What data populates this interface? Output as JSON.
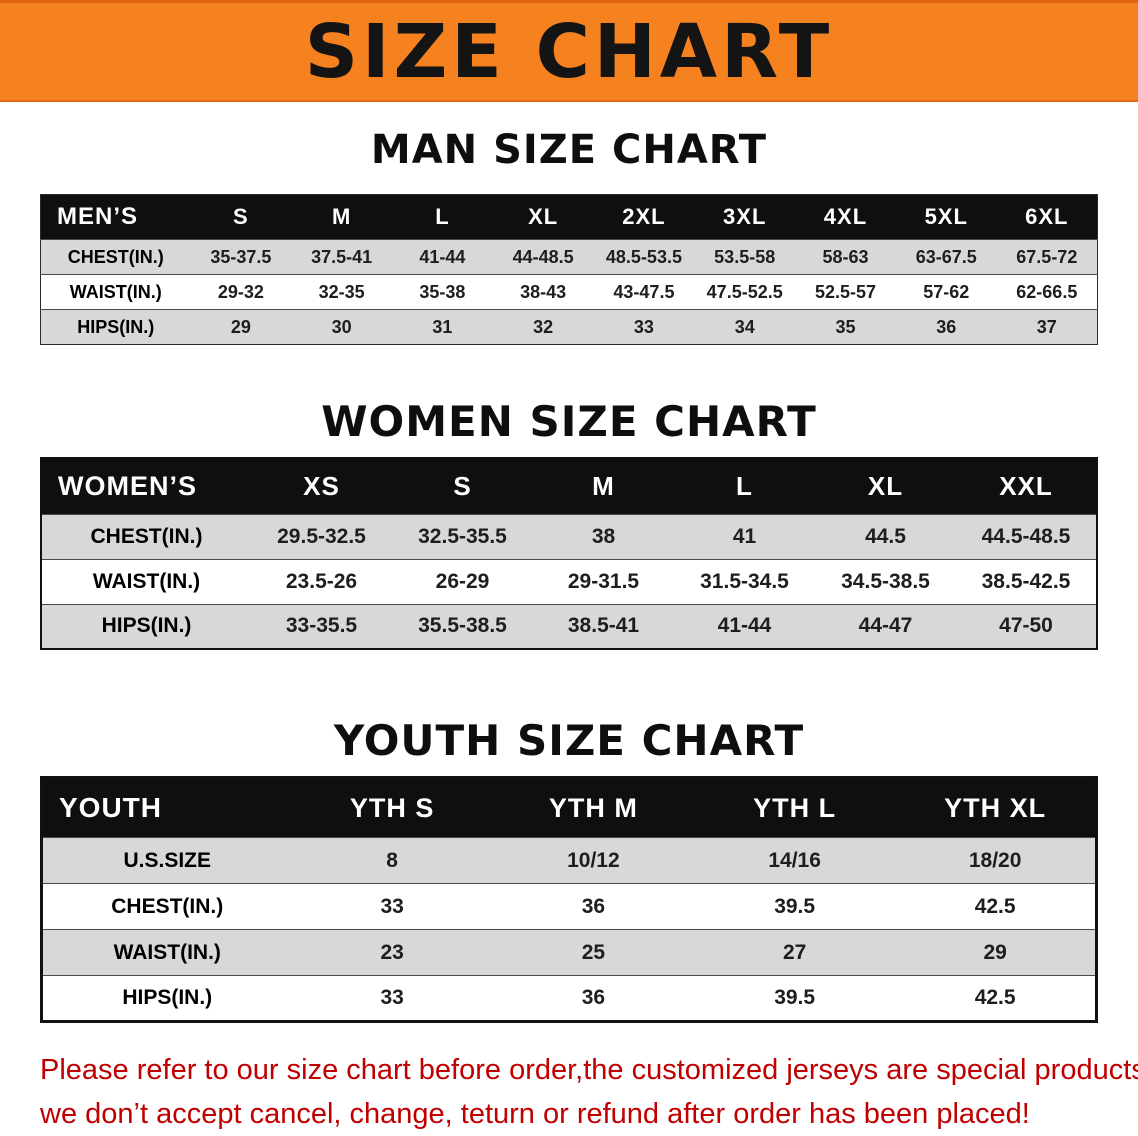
{
  "banner": {
    "title": "SIZE CHART",
    "bg_color": "#F5821F",
    "text_color": "#141414"
  },
  "sections": [
    {
      "id": "men-size-chart",
      "title": "MAN SIZE CHART",
      "table": {
        "header": [
          "MEN’S",
          "S",
          "M",
          "L",
          "XL",
          "2XL",
          "3XL",
          "4XL",
          "5XL",
          "6XL"
        ],
        "rows": [
          [
            "CHEST(IN.)",
            "35-37.5",
            "37.5-41",
            "41-44",
            "44-48.5",
            "48.5-53.5",
            "53.5-58",
            "58-63",
            "63-67.5",
            "67.5-72"
          ],
          [
            "WAIST(IN.)",
            "29-32",
            "32-35",
            "35-38",
            "38-43",
            "43-47.5",
            "47.5-52.5",
            "52.5-57",
            "57-62",
            "62-66.5"
          ],
          [
            "HIPS(IN.)",
            "29",
            "30",
            "31",
            "32",
            "33",
            "34",
            "35",
            "36",
            "37"
          ]
        ]
      }
    },
    {
      "id": "women-size-chart",
      "title": "WOMEN SIZE CHART",
      "table": {
        "header": [
          "WOMEN’S",
          "XS",
          "S",
          "M",
          "L",
          "XL",
          "XXL"
        ],
        "rows": [
          [
            "CHEST(IN.)",
            "29.5-32.5",
            "32.5-35.5",
            "38",
            "41",
            "44.5",
            "44.5-48.5"
          ],
          [
            "WAIST(IN.)",
            "23.5-26",
            "26-29",
            "29-31.5",
            "31.5-34.5",
            "34.5-38.5",
            "38.5-42.5"
          ],
          [
            "HIPS(IN.)",
            "33-35.5",
            "35.5-38.5",
            "38.5-41",
            "41-44",
            "44-47",
            "47-50"
          ]
        ]
      }
    },
    {
      "id": "youth-size-chart",
      "title": "YOUTH SIZE CHART",
      "table": {
        "header": [
          "YOUTH",
          "YTH S",
          "YTH M",
          "YTH L",
          "YTH XL"
        ],
        "rows": [
          [
            "U.S.SIZE",
            "8",
            "10/12",
            "14/16",
            "18/20"
          ],
          [
            "CHEST(IN.)",
            "33",
            "36",
            "39.5",
            "42.5"
          ],
          [
            "WAIST(IN.)",
            "23",
            "25",
            "27",
            "29"
          ],
          [
            "HIPS(IN.)",
            "33",
            "36",
            "39.5",
            "42.5"
          ]
        ]
      }
    }
  ],
  "footer": {
    "line1": "Please refer to our size chart before order,the customized jerseys are special products,",
    "line2": "we don’t accept cancel, change, teturn or refund after order has been placed!",
    "text_color": "#C00000"
  }
}
